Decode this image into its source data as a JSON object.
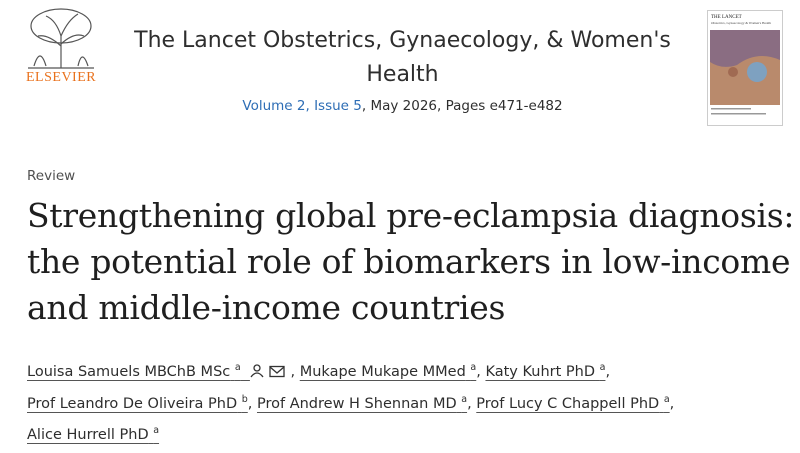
{
  "header": {
    "publisher": "ELSEVIER",
    "journal": "The Lancet Obstetrics, Gynaecology, & Women's Health",
    "volume_issue": "Volume 2, Issue 5",
    "date_pages": ", May 2026, Pages e471-e482",
    "cover": {
      "title": "THE LANCET",
      "subtitle": "Obstetrics, Gynaecology & Women's Health"
    }
  },
  "article": {
    "type": "Review",
    "title": "Strengthening global pre-eclampsia diagnosis: the potential role of biomarkers in low-income and middle-income countries",
    "author_separator": ",",
    "authors": [
      {
        "name": "Louisa Samuels MBChB MSc",
        "affiliation": "a"
      },
      {
        "name": "Mukape Mukape MMed",
        "affiliation": "a"
      },
      {
        "name": "Katy Kuhrt PhD",
        "affiliation": "a"
      },
      {
        "name": "Prof Leandro De Oliveira PhD",
        "affiliation": "b"
      },
      {
        "name": "Prof Andrew H Shennan MD",
        "affiliation": "a"
      },
      {
        "name": "Prof Lucy C Chappell PhD",
        "affiliation": "a"
      },
      {
        "name": "Alice Hurrell PhD",
        "affiliation": "a"
      }
    ]
  }
}
